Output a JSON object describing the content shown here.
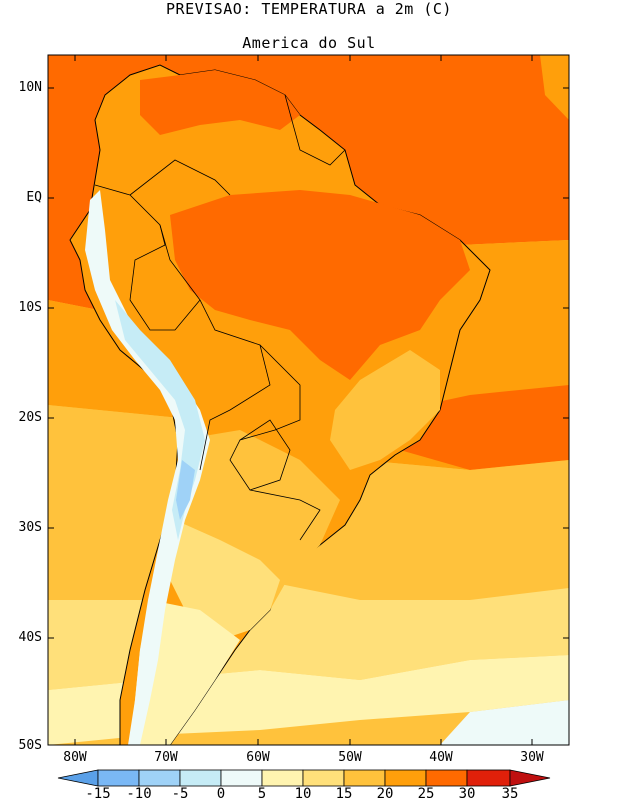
{
  "title": "PREVISAO: TEMPERATURA a 2m (C)",
  "subtitle": "America do Sul",
  "lat_labels": [
    "10N",
    "EQ",
    "10S",
    "20S",
    "30S",
    "40S",
    "50S"
  ],
  "lon_labels": [
    "80W",
    "70W",
    "60W",
    "50W",
    "40W",
    "30W"
  ],
  "colorbar": {
    "ticks": [
      "-15",
      "-10",
      "-5",
      "0",
      "5",
      "10",
      "15",
      "20",
      "25",
      "30",
      "35"
    ],
    "colors": [
      "#5aa0e8",
      "#7ab8f5",
      "#9fd2f7",
      "#c6ecf6",
      "#eefaf9",
      "#fff4b0",
      "#ffe07a",
      "#ffc23c",
      "#ff9f0b",
      "#ff6a00",
      "#e0200a",
      "#bf1010"
    ]
  },
  "map_colors": {
    "ocean_hot": "#ff6a00",
    "ocean_warm": "#ff9f0b",
    "ocean_mild": "#ffc23c",
    "ocean_cool": "#ffe07a",
    "ocean_cold": "#fff4b0",
    "ocean_colder": "#eefaf9",
    "andes_cold": "#c6ecf6",
    "andes_colder": "#9fd2f7"
  }
}
